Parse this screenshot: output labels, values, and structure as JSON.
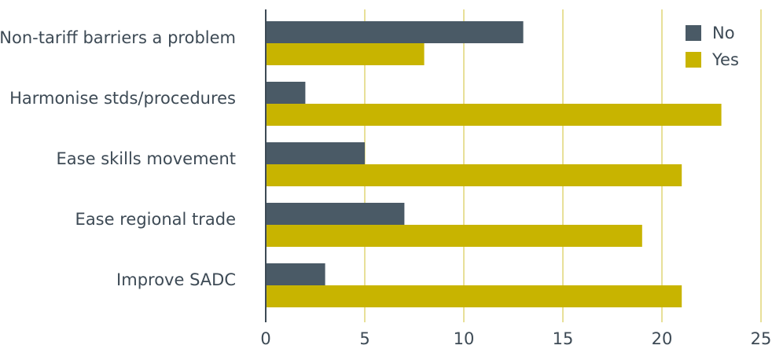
{
  "chart_data": {
    "type": "bar",
    "orientation": "horizontal",
    "categories": [
      "Non-tariff barriers a problem",
      "Harmonise stds/procedures",
      "Ease skills movement",
      "Ease regional trade",
      "Improve SADC"
    ],
    "series": [
      {
        "name": "No",
        "values": [
          13,
          2,
          5,
          7,
          3
        ],
        "color": "#4a5a66"
      },
      {
        "name": "Yes",
        "values": [
          8,
          23,
          21,
          19,
          21
        ],
        "color": "#c8b400"
      }
    ],
    "xlim": [
      0,
      25
    ],
    "xticks": [
      "0",
      "5",
      "10",
      "15",
      "20",
      "25"
    ],
    "grid": true,
    "grid_color": "#d9cc55",
    "legend_position": "top-right",
    "title": "",
    "xlabel": "",
    "ylabel": ""
  }
}
